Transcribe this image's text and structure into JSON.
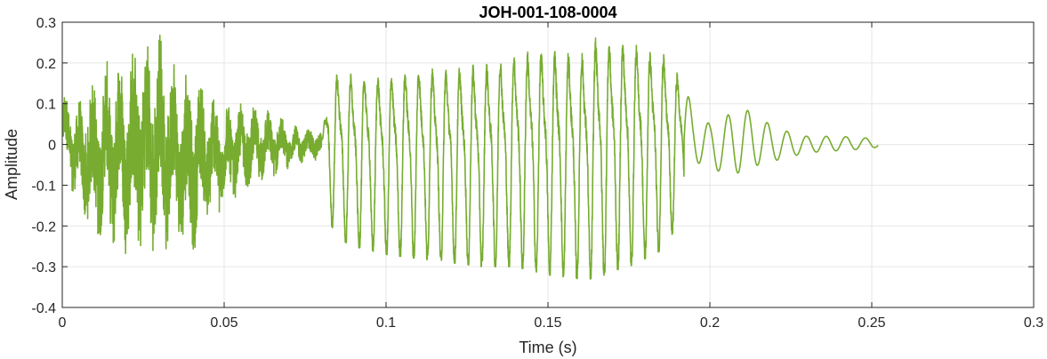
{
  "chart_data": {
    "type": "line",
    "title": "JOH-001-108-0004",
    "xlabel": "Time (s)",
    "ylabel": "Amplitude",
    "xlim": [
      0,
      0.3
    ],
    "ylim": [
      -0.4,
      0.3
    ],
    "xticks": [
      0,
      0.05,
      0.1,
      0.15,
      0.2,
      0.25,
      0.3
    ],
    "xtick_labels": [
      "0",
      "0.05",
      "0.1",
      "0.15",
      "0.2",
      "0.25",
      "0.3"
    ],
    "yticks": [
      -0.4,
      -0.3,
      -0.2,
      -0.1,
      0,
      0.1,
      0.2,
      0.3
    ],
    "ytick_labels": [
      "-0.4",
      "-0.3",
      "-0.2",
      "-0.1",
      "0",
      "0.1",
      "0.2",
      "0.3"
    ],
    "grid": true,
    "colors": {
      "series": "#77ac30",
      "grid": "#e6e6e6",
      "axes": "#262626"
    },
    "series": [
      {
        "envelope": {
          "x": [
            0,
            0.005,
            0.01,
            0.015,
            0.02,
            0.025,
            0.03,
            0.035,
            0.04,
            0.045,
            0.05,
            0.055,
            0.06,
            0.065,
            0.07,
            0.075,
            0.0795,
            0.0805,
            0.082,
            0.085,
            0.09,
            0.1,
            0.11,
            0.12,
            0.13,
            0.14,
            0.15,
            0.16,
            0.165,
            0.17,
            0.175,
            0.18,
            0.185,
            0.19,
            0.192,
            0.195,
            0.2,
            0.205,
            0.21,
            0.215,
            0.22,
            0.23,
            0.24,
            0.25,
            0.252
          ],
          "max": [
            0.13,
            0.1,
            0.18,
            0.21,
            0.23,
            0.26,
            0.27,
            0.2,
            0.19,
            0.15,
            0.1,
            0.1,
            0.09,
            0.08,
            0.05,
            0.04,
            0.04,
            0.02,
            0.2,
            0.2,
            0.2,
            0.2,
            0.22,
            0.22,
            0.23,
            0.26,
            0.27,
            0.26,
            0.3,
            0.29,
            0.29,
            0.26,
            0.26,
            0.2,
            0.15,
            0.08,
            0.05,
            0.07,
            0.09,
            0.07,
            0.04,
            0.02,
            0.02,
            0.015,
            0.01
          ],
          "min": [
            -0.05,
            -0.17,
            -0.25,
            -0.24,
            -0.27,
            -0.26,
            -0.26,
            -0.25,
            -0.29,
            -0.2,
            -0.17,
            -0.12,
            -0.1,
            -0.08,
            -0.06,
            -0.04,
            -0.04,
            -0.02,
            -0.18,
            -0.23,
            -0.25,
            -0.27,
            -0.28,
            -0.29,
            -0.3,
            -0.3,
            -0.32,
            -0.33,
            -0.33,
            -0.31,
            -0.3,
            -0.28,
            -0.26,
            -0.2,
            -0.14,
            -0.04,
            -0.06,
            -0.07,
            -0.07,
            -0.05,
            -0.04,
            -0.02,
            -0.015,
            -0.01,
            -0.005
          ],
          "note": ""
        }
      }
    ]
  }
}
